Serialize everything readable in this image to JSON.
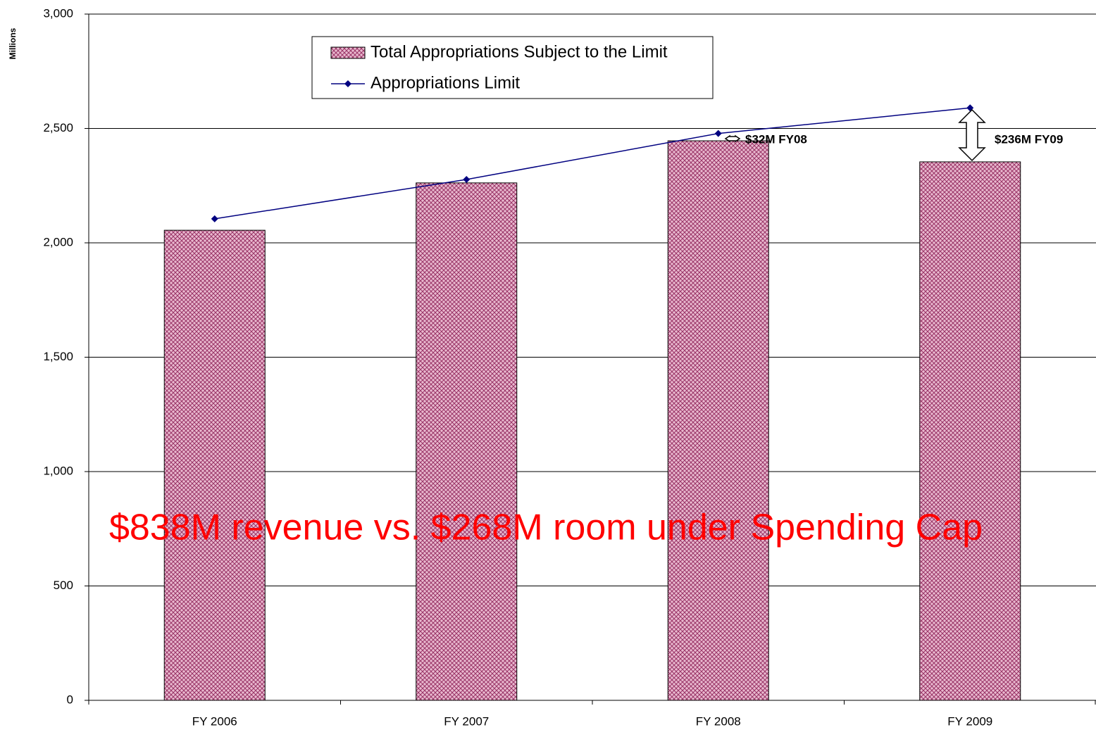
{
  "chart_data": {
    "type": "bar_line",
    "y_label": "Millions",
    "categories": [
      "FY 2006",
      "FY 2007",
      "FY 2008",
      "FY 2009"
    ],
    "series": [
      {
        "name": "Total Appropriations Subject to the Limit",
        "type": "bar",
        "color": "#993366",
        "values": [
          2055,
          2262,
          2446,
          2354
        ]
      },
      {
        "name": "Appropriations Limit",
        "type": "line",
        "color": "#000080",
        "values": [
          2105,
          2277,
          2478,
          2590
        ]
      }
    ],
    "ylim": [
      0,
      3000
    ],
    "yticks": [
      0,
      500,
      {
        "value": 1000,
        "label": "1,000"
      },
      {
        "value": 1500,
        "label": "1,500"
      },
      {
        "value": 2000,
        "label": "2,000"
      },
      {
        "value": 2500,
        "label": "2,500"
      },
      {
        "value": 3000,
        "label": "3,000"
      }
    ],
    "grid": true,
    "annotations": [
      "$32M FY08",
      "$236M FY09"
    ],
    "headline": "$838M revenue vs. $268M room under Spending Cap"
  }
}
